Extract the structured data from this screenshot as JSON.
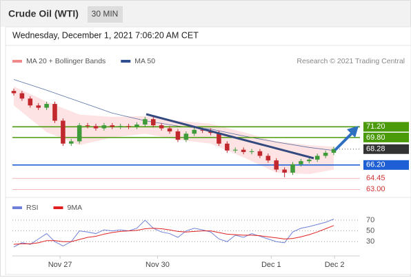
{
  "header": {
    "title": "Crude Oil (WTI)",
    "timeframe": "30 MIN",
    "date": "Wednesday, December 1, 2021 7:06:20 AM CET"
  },
  "chart_data": [
    {
      "type": "candlestick",
      "credit": "Research © 2021 Trading Central",
      "up_color": "#3f9a3a",
      "down_color": "#c0282d",
      "open": [
        75.9,
        75.6,
        74.9,
        74.0,
        73.7,
        74.2,
        72.0,
        69.0,
        69.3,
        71.4,
        71.3,
        71.0,
        71.4,
        71.2,
        71.3,
        71.2,
        71.5,
        72.2,
        71.4,
        71.0,
        70.6,
        69.5,
        70.3,
        70.8,
        70.7,
        70.4,
        69.0,
        68.1,
        68.2,
        67.9,
        68.0,
        67.4,
        66.8,
        65.6,
        65.2,
        66.3,
        66.7,
        66.9,
        67.4,
        67.8
      ],
      "high": [
        76.2,
        75.9,
        75.2,
        74.3,
        74.5,
        74.5,
        72.3,
        69.6,
        71.7,
        71.7,
        71.6,
        71.7,
        71.7,
        71.6,
        71.6,
        71.8,
        72.5,
        72.5,
        71.7,
        71.3,
        70.9,
        70.6,
        71.1,
        71.1,
        71.0,
        70.7,
        69.3,
        68.5,
        68.5,
        68.3,
        68.3,
        67.7,
        67.1,
        65.9,
        66.6,
        67.0,
        67.2,
        67.7,
        68.1,
        68.6
      ],
      "low": [
        75.3,
        74.6,
        73.7,
        73.4,
        73.4,
        71.7,
        68.7,
        68.7,
        69.0,
        71.0,
        70.7,
        70.7,
        70.9,
        70.9,
        70.9,
        70.9,
        71.2,
        71.1,
        70.7,
        70.3,
        69.2,
        69.2,
        70.0,
        70.4,
        70.1,
        68.7,
        67.8,
        67.8,
        67.6,
        67.6,
        67.1,
        66.5,
        65.3,
        64.6,
        64.9,
        66.0,
        66.4,
        66.6,
        67.1,
        67.5
      ],
      "close": [
        75.6,
        74.9,
        74.0,
        73.7,
        74.2,
        72.0,
        69.0,
        69.3,
        71.4,
        71.3,
        71.0,
        71.4,
        71.2,
        71.3,
        71.2,
        71.5,
        72.2,
        71.4,
        71.0,
        70.6,
        69.5,
        70.3,
        70.8,
        70.7,
        70.4,
        69.0,
        68.1,
        68.2,
        67.9,
        68.0,
        67.4,
        66.8,
        65.6,
        65.2,
        66.3,
        66.7,
        66.9,
        67.4,
        67.8,
        68.3
      ],
      "xlim": [
        -0.2,
        39.2
      ],
      "ylim": [
        62.4,
        78.8
      ],
      "band_x": [
        0,
        4,
        8,
        12,
        16,
        20,
        24,
        28,
        32,
        36,
        39
      ],
      "series": [
        {
          "name": "MA 20 + Bollinger Bands",
          "color": "#f08a8a",
          "upper": [
            76.5,
            74.5,
            72.8,
            72.5,
            72.6,
            72.0,
            71.6,
            70.5,
            69.3,
            68.8,
            68.6
          ],
          "lower": [
            74.0,
            70.5,
            68.8,
            69.8,
            70.3,
            69.5,
            69.0,
            67.2,
            65.2,
            65.0,
            65.6
          ]
        },
        {
          "name": "MA 50",
          "color": "#2e4e8f",
          "values": [
            77.4,
            76.0,
            74.5,
            73.0,
            72.0,
            71.3,
            70.9,
            70.0,
            69.2,
            68.5,
            68.1
          ]
        }
      ],
      "levels": [
        {
          "value": 71.2,
          "label": "71.20",
          "color": "#4a9a0a",
          "style": "box"
        },
        {
          "value": 69.8,
          "label": "69.80",
          "color": "#4a9a0a",
          "style": "box"
        },
        {
          "value": 68.28,
          "label": "68.28",
          "color": "#333333",
          "style": "last"
        },
        {
          "value": 66.2,
          "label": "66.20",
          "color": "#1f5fd6",
          "style": "box"
        },
        {
          "value": 64.45,
          "label": "64.45",
          "color": "#d03030",
          "style": "text"
        },
        {
          "value": 63,
          "label": "63.00",
          "color": "#d03030",
          "style": "text"
        }
      ]
    },
    {
      "type": "line",
      "series": [
        {
          "name": "RSI",
          "color": "#6f80d8",
          "values": [
            20,
            28,
            25,
            35,
            45,
            30,
            22,
            30,
            50,
            48,
            45,
            52,
            50,
            52,
            50,
            55,
            70,
            55,
            48,
            45,
            38,
            50,
            55,
            52,
            48,
            35,
            30,
            42,
            38,
            45,
            40,
            35,
            30,
            28,
            48,
            55,
            58,
            62,
            66,
            72
          ]
        },
        {
          "name": "9MA",
          "color": "#e02020",
          "values": [
            25,
            26,
            26,
            28,
            32,
            32,
            30,
            30,
            34,
            38,
            40,
            44,
            47,
            49,
            50,
            51,
            54,
            55,
            54,
            52,
            49,
            48,
            49,
            50,
            50,
            47,
            44,
            43,
            42,
            42,
            41,
            39,
            37,
            35,
            36,
            39,
            43,
            48,
            54,
            60
          ]
        }
      ],
      "xlim": [
        -0.2,
        39.2
      ],
      "ylim": [
        6,
        79
      ],
      "yticks": [
        70,
        50,
        30
      ],
      "xticks": [
        {
          "value": 5.5,
          "label": "Nov 27"
        },
        {
          "value": 17.5,
          "label": "Nov 30"
        },
        {
          "value": 31.5,
          "label": "Dec 1"
        },
        {
          "value": 39.3,
          "label": "Dec 2"
        }
      ]
    }
  ]
}
